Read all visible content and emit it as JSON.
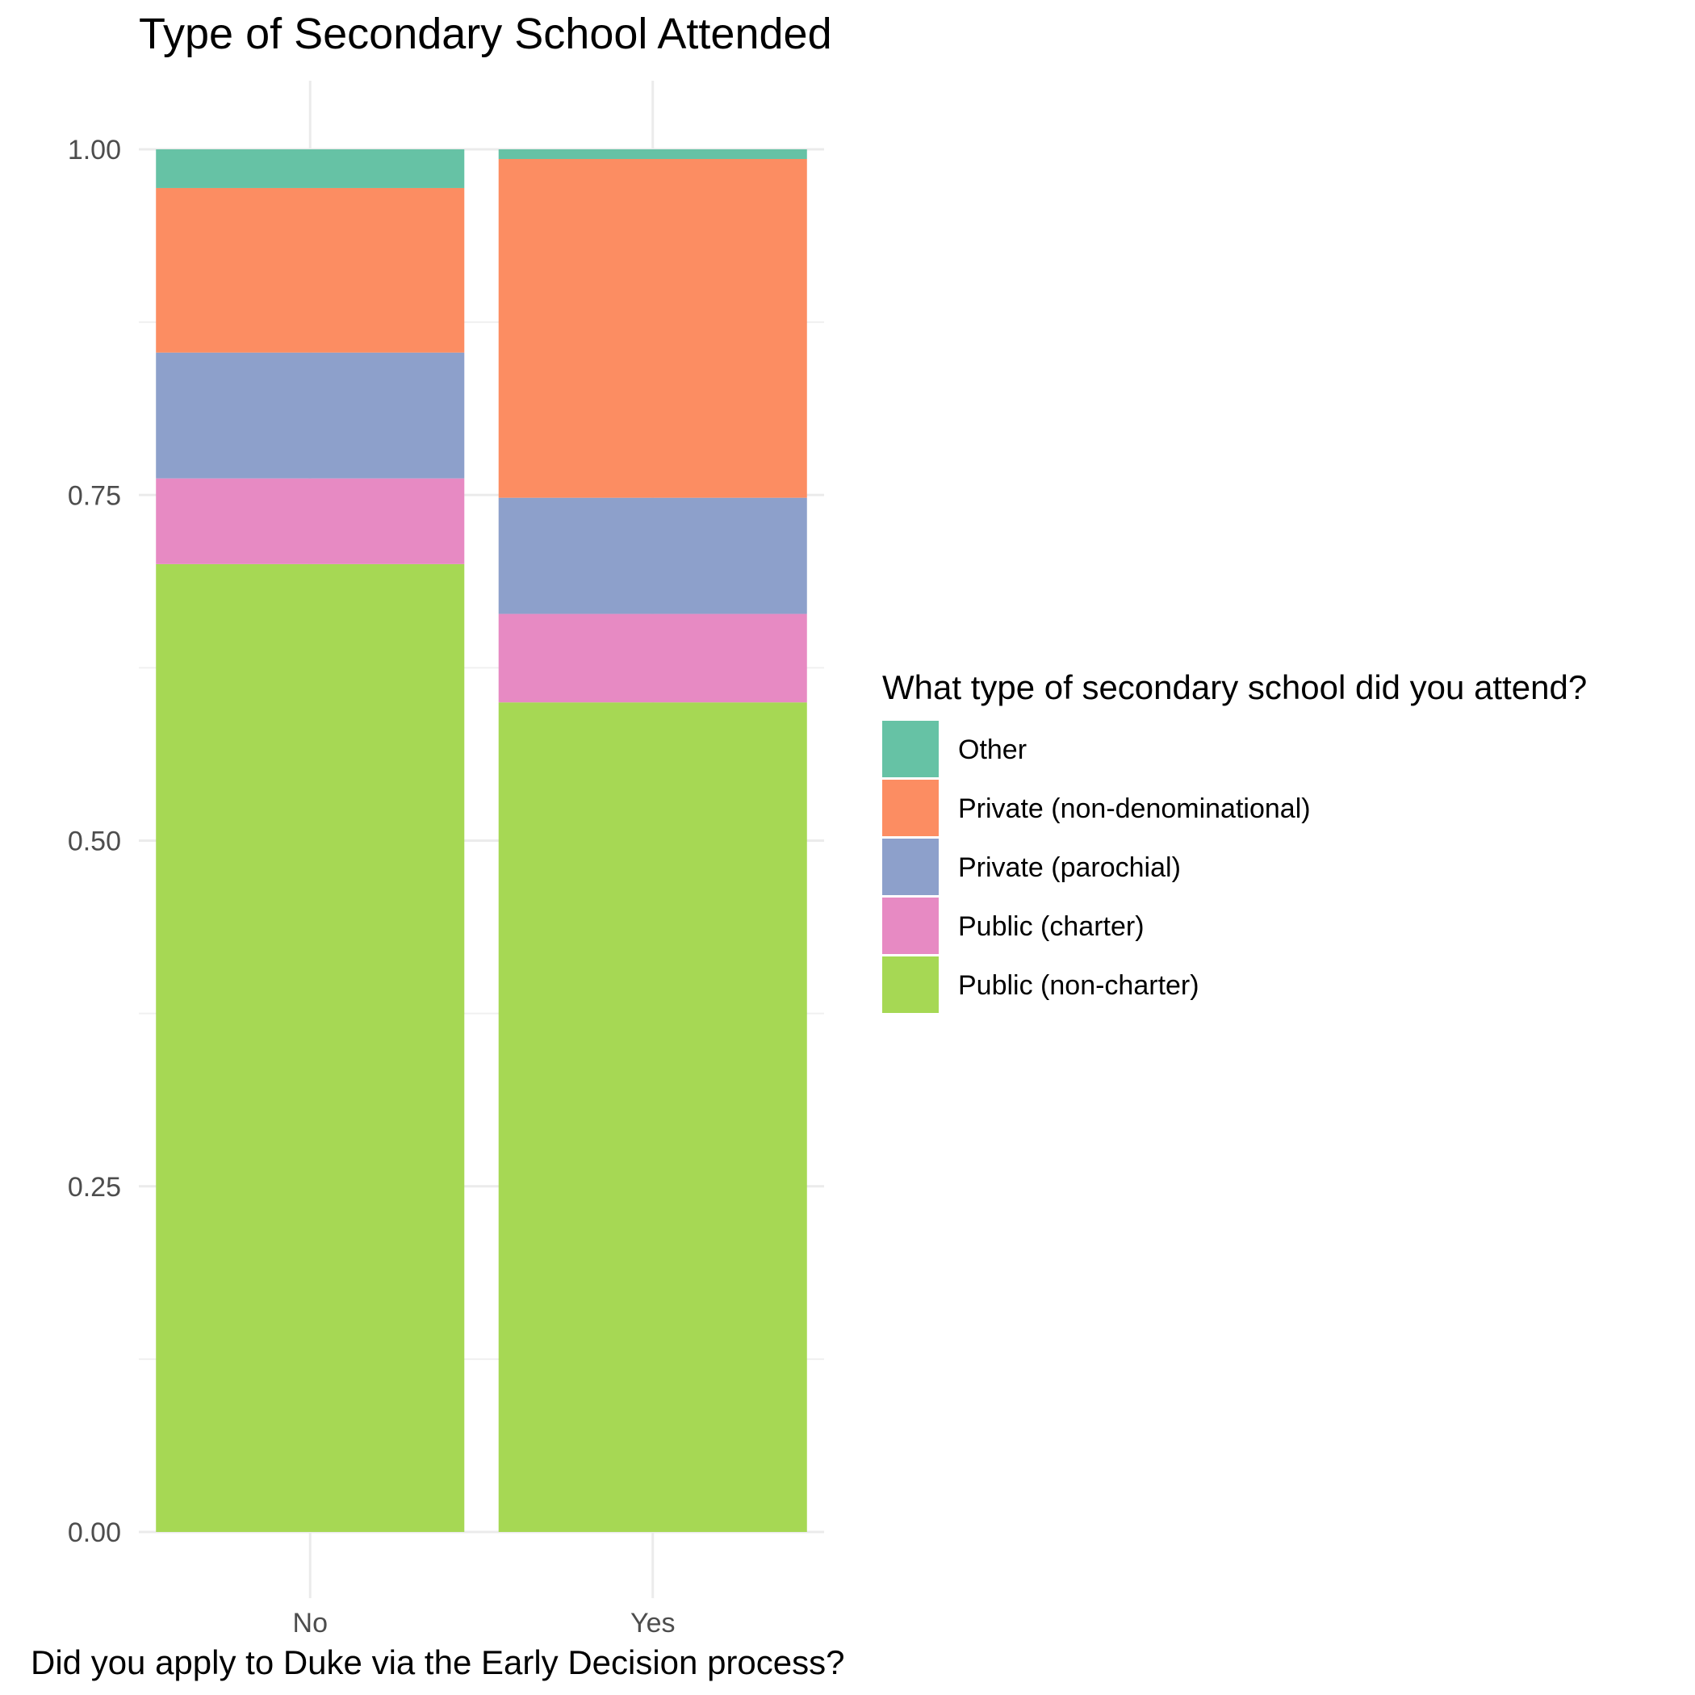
{
  "chart_data": {
    "type": "bar",
    "stacked": true,
    "normalized": true,
    "title": "Type of Secondary School Attended",
    "xlabel": "Did you apply to Duke via the Early Decision process?",
    "ylabel": "",
    "categories": [
      "No",
      "Yes"
    ],
    "ylim": [
      0,
      1
    ],
    "y_ticks": [
      0,
      0.25,
      0.5,
      0.75,
      1
    ],
    "y_tick_labels": [
      "0.00",
      "0.25",
      "0.50",
      "0.75",
      "1.00"
    ],
    "grid": true,
    "legend": {
      "title": "What type of secondary school did you attend?",
      "position": "right"
    },
    "series": [
      {
        "name": "Other",
        "color": "#66C2A5",
        "values": [
          0.028,
          0.007
        ]
      },
      {
        "name": "Private (non-denominational)",
        "color": "#FC8D62",
        "values": [
          0.119,
          0.245
        ]
      },
      {
        "name": "Private (parochial)",
        "color": "#8DA0CB",
        "values": [
          0.091,
          0.084
        ]
      },
      {
        "name": "Public (charter)",
        "color": "#E78AC3",
        "values": [
          0.062,
          0.064
        ]
      },
      {
        "name": "Public (non-charter)",
        "color": "#A6D854",
        "values": [
          0.7,
          0.6
        ]
      }
    ]
  }
}
